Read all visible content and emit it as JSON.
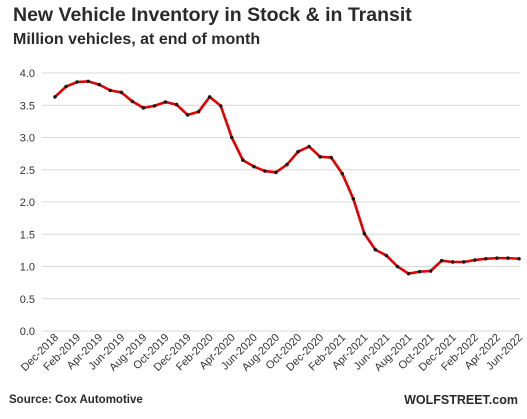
{
  "chart_data": {
    "type": "line",
    "title": "New Vehicle Inventory in Stock & in Transit",
    "subtitle": "Million vehicles, at end of month",
    "source": "Source: Cox Automotive",
    "watermark": "WOLFSTREET.com",
    "xlabel": "",
    "ylabel": "",
    "ylim": [
      0,
      4
    ],
    "yticks": [
      "0.0",
      "0.5",
      "1.0",
      "1.5",
      "2.0",
      "2.5",
      "3.0",
      "3.5",
      "4.0"
    ],
    "grid": "horizontal",
    "legend": "none",
    "line_color": "#e00000",
    "marker_color": "#1a1a1a",
    "x": [
      "Dec-2018",
      "Jan-2019",
      "Feb-2019",
      "Mar-2019",
      "Apr-2019",
      "May-2019",
      "Jun-2019",
      "Jul-2019",
      "Aug-2019",
      "Sep-2019",
      "Oct-2019",
      "Nov-2019",
      "Dec-2019",
      "Jan-2020",
      "Feb-2020",
      "Mar-2020",
      "Apr-2020",
      "May-2020",
      "Jun-2020",
      "Jul-2020",
      "Aug-2020",
      "Sep-2020",
      "Oct-2020",
      "Nov-2020",
      "Dec-2020",
      "Jan-2021",
      "Feb-2021",
      "Mar-2021",
      "Apr-2021",
      "May-2021",
      "Jun-2021",
      "Jul-2021",
      "Aug-2021",
      "Sep-2021",
      "Oct-2021",
      "Nov-2021",
      "Dec-2021",
      "Jan-2022",
      "Feb-2022",
      "Mar-2022",
      "Apr-2022",
      "May-2022",
      "Jun-2022"
    ],
    "x_tick_labels": [
      "Dec-2018",
      "Feb-2019",
      "Apr-2019",
      "Jun-2019",
      "Aug-2019",
      "Oct-2019",
      "Dec-2019",
      "Feb-2020",
      "Apr-2020",
      "Jun-2020",
      "Aug-2020",
      "Oct-2020",
      "Dec-2020",
      "Feb-2021",
      "Apr-2021",
      "Jun-2021",
      "Aug-2021",
      "Oct-2021",
      "Dec-2021",
      "Feb-2022",
      "Apr-2022",
      "Jun-2022"
    ],
    "series": [
      {
        "values": [
          3.63,
          3.79,
          3.86,
          3.87,
          3.82,
          3.73,
          3.7,
          3.56,
          3.46,
          3.49,
          3.55,
          3.51,
          3.35,
          3.4,
          3.63,
          3.49,
          3.0,
          2.65,
          2.55,
          2.48,
          2.46,
          2.58,
          2.78,
          2.86,
          2.7,
          2.69,
          2.44,
          2.05,
          1.51,
          1.26,
          1.17,
          1.0,
          0.89,
          0.92,
          0.93,
          1.09,
          1.07,
          1.07,
          1.1,
          1.12,
          1.13,
          1.13,
          1.12
        ]
      }
    ]
  }
}
